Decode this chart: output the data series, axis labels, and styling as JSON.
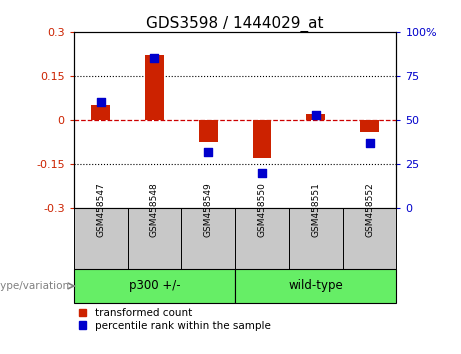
{
  "title": "GDS3598 / 1444029_at",
  "samples": [
    "GSM458547",
    "GSM458548",
    "GSM458549",
    "GSM458550",
    "GSM458551",
    "GSM458552"
  ],
  "bar_values": [
    0.05,
    0.22,
    -0.075,
    -0.13,
    0.02,
    -0.04
  ],
  "dot_values_pct": [
    60,
    85,
    32,
    20,
    53,
    37
  ],
  "ylim_left": [
    -0.3,
    0.3
  ],
  "ylim_right": [
    0,
    100
  ],
  "yticks_left": [
    -0.3,
    -0.15,
    0.0,
    0.15,
    0.3
  ],
  "yticks_right": [
    0,
    25,
    50,
    75,
    100
  ],
  "bar_color": "#CC2200",
  "dot_color": "#0000CC",
  "zero_line_color": "#CC0000",
  "grid_color": "#000000",
  "bg_color": "#FFFFFF",
  "sample_bg_color": "#C8C8C8",
  "group_color": "#66EE66",
  "legend_items": [
    "transformed count",
    "percentile rank within the sample"
  ],
  "genotype_label": "genotype/variation",
  "fontsize_title": 11,
  "fontsize_ticks": 8,
  "fontsize_legend": 7.5,
  "fontsize_sample": 6.5,
  "fontsize_group": 8.5
}
